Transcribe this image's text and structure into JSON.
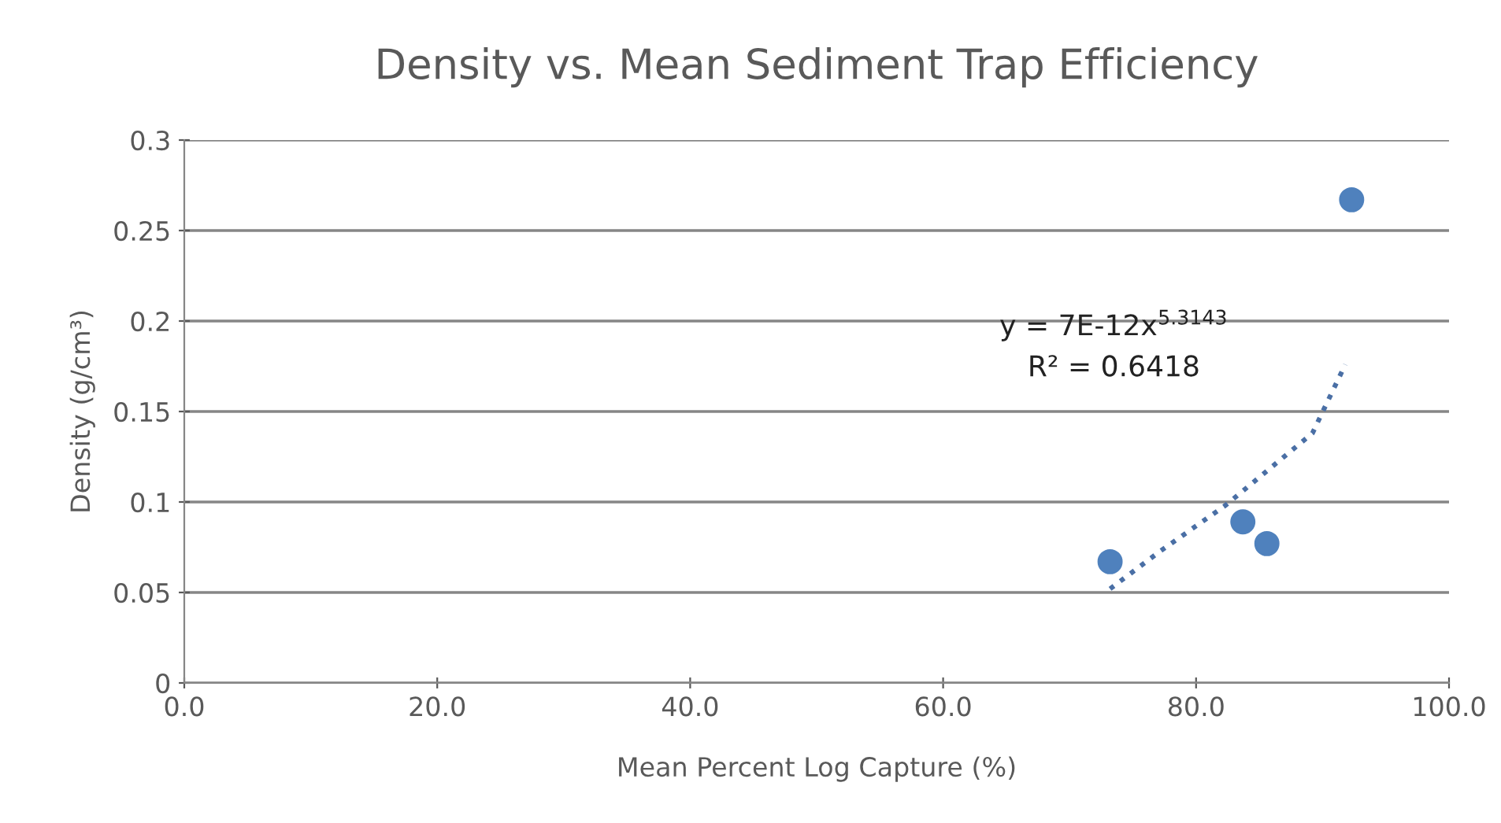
{
  "chart_data": {
    "type": "scatter",
    "title": "Density vs. Mean Sediment Trap Efficiency",
    "xlabel": "Mean Percent Log Capture (%)",
    "ylabel": "Density (g/cm³)",
    "series": [
      {
        "color": "#4f81bd",
        "marker": "circle",
        "x": [
          73.2,
          83.7,
          85.6,
          92.3
        ],
        "values": [
          0.067,
          0.089,
          0.077,
          0.267
        ]
      },
      {
        "type": "line",
        "color": "#4a6fa5",
        "line_style": "dotted",
        "marker": "none",
        "x": [
          73.2,
          77.2,
          82.3,
          89.2,
          91.8
        ],
        "values": [
          0.052,
          0.073,
          0.098,
          0.138,
          0.176
        ]
      }
    ],
    "annotations": [
      "y = 7E-12x$^{5.3143}$",
      "R² = 0.6418"
    ],
    "xlim": [
      0,
      100
    ],
    "xticks": [
      {
        "value": 0,
        "label": "0.0"
      },
      {
        "value": 20,
        "label": "20.0"
      },
      {
        "value": 40,
        "label": "40.0"
      },
      {
        "value": 60,
        "label": "60.0"
      },
      {
        "value": 80,
        "label": "80.0"
      },
      {
        "value": 100,
        "label": "100.0"
      }
    ],
    "ylim": [
      0,
      0.3
    ],
    "yticks": [
      0,
      0.05,
      0.1,
      0.15,
      0.2,
      0.25,
      0.3
    ],
    "grid": "y",
    "legend": false
  }
}
